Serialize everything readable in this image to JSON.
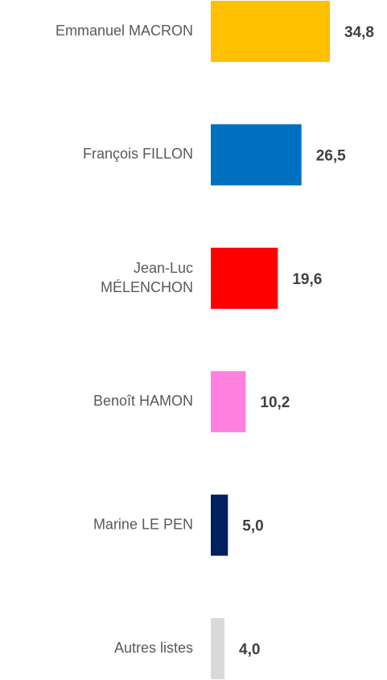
{
  "chart_data": {
    "type": "bar",
    "orientation": "horizontal",
    "categories": [
      "Emmanuel MACRON",
      "François FILLON",
      "Jean-Luc MÉLENCHON",
      "Benoît HAMON",
      "Marine LE PEN",
      "Autres listes"
    ],
    "values": [
      34.8,
      26.5,
      19.6,
      10.2,
      5.0,
      4.0
    ],
    "value_labels": [
      "34,8",
      "26,5",
      "19,6",
      "10,2",
      "5,0",
      "4,0"
    ],
    "colors": [
      "#FFC000",
      "#0070C0",
      "#FF0000",
      "#FF80DF",
      "#002060",
      "#D9D9D9"
    ]
  }
}
